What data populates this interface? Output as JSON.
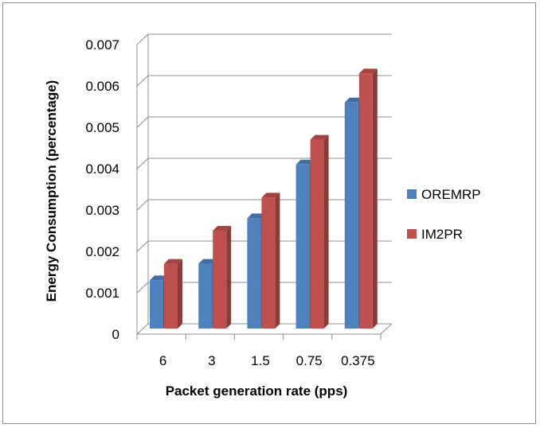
{
  "chart_data": {
    "type": "bar",
    "categories": [
      "6",
      "3",
      "1.5",
      "0.75",
      "0.375"
    ],
    "series": [
      {
        "name": "OREMRP",
        "values": [
          0.0013,
          0.0017,
          0.0028,
          0.0041,
          0.0056
        ],
        "color": "#4F81BD"
      },
      {
        "name": "IM2PR",
        "values": [
          0.0017,
          0.0025,
          0.0033,
          0.0047,
          0.0063
        ],
        "color": "#C0504D"
      }
    ],
    "xlabel": "Packet generation rate (pps)",
    "ylabel": "Energy Consumption (percentage)",
    "ylim": [
      0,
      0.007
    ],
    "yticks": [
      "0",
      "0.001",
      "0.002",
      "0.003",
      "0.004",
      "0.005",
      "0.006",
      "0.007"
    ],
    "grid": true,
    "legend": "right",
    "style": "3d-column"
  }
}
